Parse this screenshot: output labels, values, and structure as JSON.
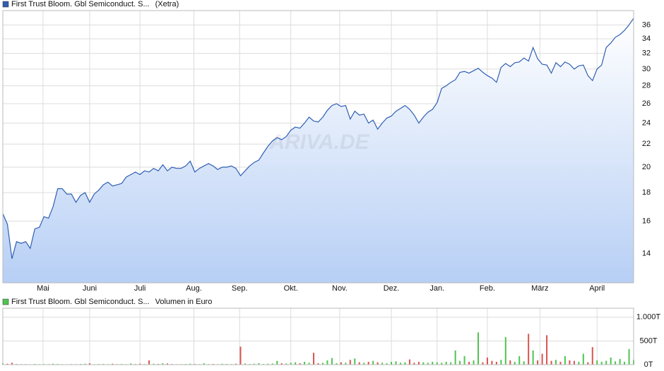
{
  "chart_data": [
    {
      "type": "line",
      "log_scale": true,
      "grid": true,
      "series_name": "First Trust Bloom. Gbl Semiconduct. S...",
      "exchange": "(Xetra)",
      "watermark": "ARIVA.DE",
      "color": "#2f5fb3",
      "fill_color": "#b7cff5",
      "values": [
        16.5,
        15.8,
        13.7,
        14.7,
        14.6,
        14.7,
        14.3,
        15.5,
        15.6,
        16.3,
        16.2,
        17.0,
        18.3,
        18.3,
        17.9,
        17.9,
        17.3,
        17.8,
        18.0,
        17.3,
        17.9,
        18.2,
        18.6,
        18.8,
        18.5,
        18.6,
        18.7,
        19.2,
        19.4,
        19.6,
        19.4,
        19.7,
        19.6,
        19.9,
        19.7,
        20.2,
        19.7,
        20.0,
        19.9,
        19.9,
        20.1,
        20.5,
        19.6,
        19.9,
        20.1,
        20.3,
        20.1,
        19.8,
        20.0,
        20.0,
        20.1,
        19.9,
        19.3,
        19.7,
        20.1,
        20.4,
        20.6,
        21.2,
        21.8,
        22.3,
        22.6,
        22.4,
        22.7,
        23.3,
        23.6,
        23.5,
        24.0,
        24.6,
        24.2,
        24.1,
        24.6,
        25.3,
        25.8,
        26.0,
        25.7,
        25.8,
        24.4,
        25.2,
        24.8,
        24.9,
        24.0,
        24.3,
        23.4,
        24.0,
        24.5,
        24.7,
        25.2,
        25.5,
        25.8,
        25.4,
        24.8,
        24.0,
        24.6,
        25.1,
        25.4,
        26.1,
        27.7,
        28.0,
        28.4,
        28.7,
        29.6,
        29.7,
        29.5,
        29.8,
        30.1,
        29.6,
        29.2,
        28.9,
        28.4,
        30.2,
        30.7,
        30.3,
        30.8,
        30.9,
        31.4,
        31.0,
        32.8,
        31.3,
        30.6,
        30.5,
        29.5,
        30.8,
        30.3,
        30.9,
        30.6,
        30.0,
        30.4,
        30.5,
        29.2,
        28.6,
        30.0,
        30.5,
        32.8,
        33.4,
        34.2,
        34.6,
        35.2,
        36.0,
        37.0
      ],
      "xlim": [
        0,
        138
      ],
      "xticks": [
        {
          "value": 8.8,
          "label": "Mai"
        },
        {
          "value": 19,
          "label": "Juni"
        },
        {
          "value": 30,
          "label": "Juli"
        },
        {
          "value": 41.8,
          "label": "Aug."
        },
        {
          "value": 51.8,
          "label": "Sep."
        },
        {
          "value": 63,
          "label": "Okt."
        },
        {
          "value": 73.7,
          "label": "Nov."
        },
        {
          "value": 85,
          "label": "Dez."
        },
        {
          "value": 95,
          "label": "Jan."
        },
        {
          "value": 106,
          "label": "Feb."
        },
        {
          "value": 117.5,
          "label": "März"
        },
        {
          "value": 130,
          "label": "April"
        }
      ],
      "ylim": [
        12.4,
        38.2
      ],
      "yticks": [
        14,
        16,
        18,
        20,
        22,
        24,
        26,
        28,
        30,
        32,
        34,
        36
      ]
    },
    {
      "type": "bar",
      "grid": true,
      "series_name": "First Trust Bloom. Gbl Semiconduct. S...",
      "unit_label": "Volumen in Euro",
      "up_color": "#4fc44f",
      "down_color": "#d9534f",
      "legend_color": "#4fc44f",
      "values": [
        30000,
        20000,
        40000,
        15000,
        10000,
        12000,
        8000,
        15000,
        10000,
        12000,
        10000,
        20000,
        15000,
        10000,
        8000,
        12000,
        10000,
        15000,
        20000,
        30000,
        10000,
        12000,
        15000,
        10000,
        20000,
        12000,
        15000,
        10000,
        25000,
        15000,
        20000,
        12000,
        90000,
        20000,
        15000,
        30000,
        25000,
        15000,
        10000,
        12000,
        15000,
        20000,
        15000,
        10000,
        30000,
        12000,
        15000,
        10000,
        20000,
        15000,
        12000,
        20000,
        380000,
        25000,
        15000,
        20000,
        30000,
        15000,
        20000,
        25000,
        80000,
        30000,
        25000,
        40000,
        50000,
        30000,
        60000,
        40000,
        250000,
        30000,
        40000,
        90000,
        140000,
        30000,
        50000,
        40000,
        100000,
        130000,
        50000,
        40000,
        60000,
        80000,
        50000,
        40000,
        30000,
        60000,
        70000,
        40000,
        50000,
        110000,
        40000,
        60000,
        50000,
        40000,
        60000,
        50000,
        40000,
        60000,
        50000,
        300000,
        80000,
        180000,
        60000,
        90000,
        680000,
        50000,
        150000,
        80000,
        60000,
        100000,
        580000,
        90000,
        60000,
        180000,
        70000,
        650000,
        300000,
        90000,
        230000,
        620000,
        80000,
        100000,
        60000,
        180000,
        90000,
        80000,
        60000,
        230000,
        50000,
        370000,
        90000,
        60000,
        80000,
        150000,
        70000,
        120000,
        60000,
        330000,
        100000
      ],
      "ylim": [
        0,
        1190000
      ],
      "yticks": [
        {
          "value": 0,
          "label": "0T"
        },
        {
          "value": 500000,
          "label": "500T"
        },
        {
          "value": 1000000,
          "label": "1.000T"
        }
      ]
    }
  ]
}
